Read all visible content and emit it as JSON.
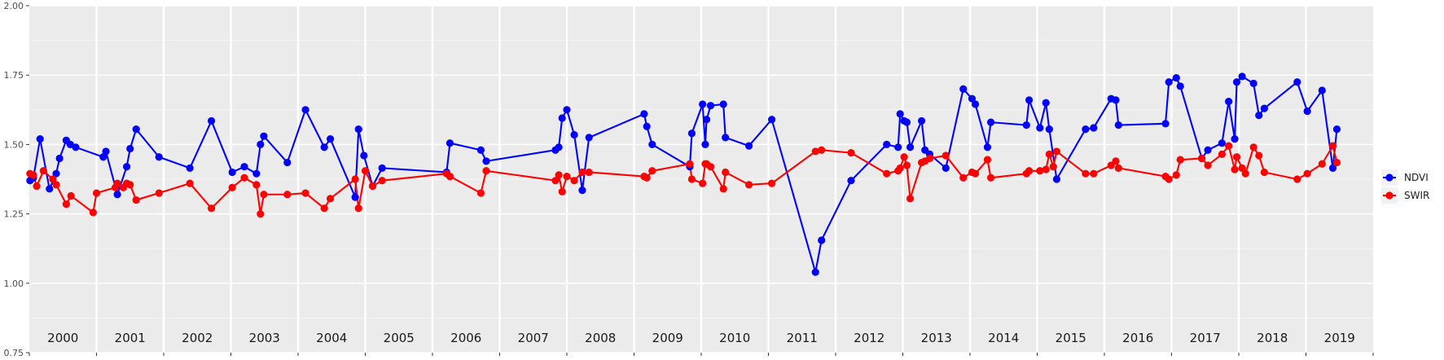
{
  "chart_data": {
    "type": "line",
    "title": "",
    "xlabel": "",
    "ylabel": "",
    "ylim": [
      0.75,
      2.0
    ],
    "y_ticks": [
      "0.75",
      "1.00",
      "1.25",
      "1.50",
      "1.75",
      "2.00"
    ],
    "x_range": [
      2000.0,
      2020.0
    ],
    "grid": true,
    "legend_position": "right",
    "year_panels": [
      "2000",
      "2001",
      "2002",
      "2003",
      "2004",
      "2005",
      "2006",
      "2007",
      "2008",
      "2009",
      "2010",
      "2011",
      "2012",
      "2013",
      "2014",
      "2015",
      "2016",
      "2017",
      "2018",
      "2019"
    ],
    "series": [
      {
        "name": "NDVI",
        "color": "#0000ff",
        "points": [
          [
            2000.01,
            1.37
          ],
          [
            2000.06,
            1.38
          ],
          [
            2000.16,
            1.52
          ],
          [
            2000.3,
            1.34
          ],
          [
            2000.4,
            1.395
          ],
          [
            2000.45,
            1.45
          ],
          [
            2000.55,
            1.515
          ],
          [
            2000.61,
            1.5
          ],
          [
            2000.69,
            1.49
          ],
          [
            2001.1,
            1.455
          ],
          [
            2001.14,
            1.475
          ],
          [
            2001.31,
            1.32
          ],
          [
            2001.45,
            1.42
          ],
          [
            2001.5,
            1.485
          ],
          [
            2001.59,
            1.555
          ],
          [
            2001.93,
            1.455
          ],
          [
            2002.39,
            1.415
          ],
          [
            2002.71,
            1.585
          ],
          [
            2003.02,
            1.4
          ],
          [
            2003.2,
            1.42
          ],
          [
            2003.38,
            1.395
          ],
          [
            2003.44,
            1.5
          ],
          [
            2003.49,
            1.53
          ],
          [
            2003.84,
            1.435
          ],
          [
            2004.11,
            1.625
          ],
          [
            2004.39,
            1.49
          ],
          [
            2004.48,
            1.52
          ],
          [
            2004.85,
            1.31
          ],
          [
            2004.9,
            1.555
          ],
          [
            2004.98,
            1.46
          ],
          [
            2005.11,
            1.35
          ],
          [
            2005.25,
            1.415
          ],
          [
            2006.21,
            1.4
          ],
          [
            2006.26,
            1.505
          ],
          [
            2006.72,
            1.48
          ],
          [
            2006.8,
            1.44
          ],
          [
            2007.83,
            1.48
          ],
          [
            2007.88,
            1.49
          ],
          [
            2007.93,
            1.595
          ],
          [
            2008.0,
            1.625
          ],
          [
            2008.11,
            1.535
          ],
          [
            2008.23,
            1.335
          ],
          [
            2008.33,
            1.525
          ],
          [
            2009.15,
            1.61
          ],
          [
            2009.19,
            1.565
          ],
          [
            2009.27,
            1.5
          ],
          [
            2009.83,
            1.42
          ],
          [
            2009.86,
            1.54
          ],
          [
            2010.02,
            1.645
          ],
          [
            2010.06,
            1.5
          ],
          [
            2010.08,
            1.59
          ],
          [
            2010.14,
            1.64
          ],
          [
            2010.33,
            1.645
          ],
          [
            2010.36,
            1.525
          ],
          [
            2010.71,
            1.495
          ],
          [
            2011.05,
            1.59
          ],
          [
            2011.7,
            1.04
          ],
          [
            2011.79,
            1.155
          ],
          [
            2012.23,
            1.37
          ],
          [
            2012.76,
            1.5
          ],
          [
            2012.93,
            1.49
          ],
          [
            2012.96,
            1.61
          ],
          [
            2013.02,
            1.585
          ],
          [
            2013.06,
            1.58
          ],
          [
            2013.11,
            1.49
          ],
          [
            2013.28,
            1.585
          ],
          [
            2013.33,
            1.48
          ],
          [
            2013.4,
            1.465
          ],
          [
            2013.64,
            1.415
          ],
          [
            2013.9,
            1.7
          ],
          [
            2014.03,
            1.665
          ],
          [
            2014.08,
            1.645
          ],
          [
            2014.26,
            1.49
          ],
          [
            2014.31,
            1.58
          ],
          [
            2014.84,
            1.57
          ],
          [
            2014.88,
            1.66
          ],
          [
            2015.04,
            1.56
          ],
          [
            2015.13,
            1.65
          ],
          [
            2015.18,
            1.555
          ],
          [
            2015.29,
            1.375
          ],
          [
            2015.72,
            1.555
          ],
          [
            2015.84,
            1.56
          ],
          [
            2016.1,
            1.665
          ],
          [
            2016.17,
            1.66
          ],
          [
            2016.21,
            1.57
          ],
          [
            2016.91,
            1.575
          ],
          [
            2016.96,
            1.725
          ],
          [
            2017.07,
            1.74
          ],
          [
            2017.13,
            1.71
          ],
          [
            2017.45,
            1.45
          ],
          [
            2017.54,
            1.48
          ],
          [
            2017.75,
            1.505
          ],
          [
            2017.85,
            1.655
          ],
          [
            2017.94,
            1.52
          ],
          [
            2017.97,
            1.725
          ],
          [
            2018.05,
            1.745
          ],
          [
            2018.22,
            1.72
          ],
          [
            2018.3,
            1.605
          ],
          [
            2018.38,
            1.63
          ],
          [
            2018.87,
            1.725
          ],
          [
            2019.02,
            1.62
          ],
          [
            2019.24,
            1.695
          ],
          [
            2019.4,
            1.415
          ],
          [
            2019.46,
            1.555
          ]
        ]
      },
      {
        "name": "SWIR",
        "color": "#ff0000",
        "points": [
          [
            2000.01,
            1.395
          ],
          [
            2000.06,
            1.39
          ],
          [
            2000.11,
            1.35
          ],
          [
            2000.21,
            1.405
          ],
          [
            2000.35,
            1.375
          ],
          [
            2000.4,
            1.355
          ],
          [
            2000.55,
            1.285
          ],
          [
            2000.62,
            1.315
          ],
          [
            2000.95,
            1.255
          ],
          [
            2001.0,
            1.325
          ],
          [
            2001.28,
            1.345
          ],
          [
            2001.31,
            1.36
          ],
          [
            2001.4,
            1.345
          ],
          [
            2001.45,
            1.36
          ],
          [
            2001.5,
            1.355
          ],
          [
            2001.59,
            1.3
          ],
          [
            2001.93,
            1.325
          ],
          [
            2002.39,
            1.36
          ],
          [
            2002.71,
            1.27
          ],
          [
            2003.02,
            1.345
          ],
          [
            2003.2,
            1.38
          ],
          [
            2003.38,
            1.355
          ],
          [
            2003.44,
            1.25
          ],
          [
            2003.49,
            1.32
          ],
          [
            2003.84,
            1.32
          ],
          [
            2004.11,
            1.325
          ],
          [
            2004.39,
            1.27
          ],
          [
            2004.48,
            1.305
          ],
          [
            2004.85,
            1.375
          ],
          [
            2004.9,
            1.27
          ],
          [
            2005.0,
            1.405
          ],
          [
            2005.11,
            1.35
          ],
          [
            2005.25,
            1.37
          ],
          [
            2006.21,
            1.395
          ],
          [
            2006.26,
            1.385
          ],
          [
            2006.72,
            1.325
          ],
          [
            2006.8,
            1.405
          ],
          [
            2007.83,
            1.37
          ],
          [
            2007.88,
            1.39
          ],
          [
            2007.93,
            1.33
          ],
          [
            2008.0,
            1.385
          ],
          [
            2008.11,
            1.37
          ],
          [
            2008.23,
            1.4
          ],
          [
            2008.33,
            1.4
          ],
          [
            2009.15,
            1.385
          ],
          [
            2009.19,
            1.38
          ],
          [
            2009.27,
            1.405
          ],
          [
            2009.83,
            1.43
          ],
          [
            2009.86,
            1.375
          ],
          [
            2010.02,
            1.36
          ],
          [
            2010.06,
            1.43
          ],
          [
            2010.08,
            1.43
          ],
          [
            2010.14,
            1.42
          ],
          [
            2010.33,
            1.34
          ],
          [
            2010.36,
            1.4
          ],
          [
            2010.71,
            1.355
          ],
          [
            2011.05,
            1.36
          ],
          [
            2011.7,
            1.475
          ],
          [
            2011.79,
            1.48
          ],
          [
            2012.23,
            1.47
          ],
          [
            2012.76,
            1.395
          ],
          [
            2012.93,
            1.405
          ],
          [
            2012.96,
            1.415
          ],
          [
            2013.02,
            1.455
          ],
          [
            2013.06,
            1.425
          ],
          [
            2013.11,
            1.305
          ],
          [
            2013.28,
            1.435
          ],
          [
            2013.33,
            1.44
          ],
          [
            2013.4,
            1.45
          ],
          [
            2013.64,
            1.46
          ],
          [
            2013.9,
            1.38
          ],
          [
            2014.03,
            1.4
          ],
          [
            2014.08,
            1.395
          ],
          [
            2014.26,
            1.445
          ],
          [
            2014.31,
            1.38
          ],
          [
            2014.84,
            1.395
          ],
          [
            2014.88,
            1.405
          ],
          [
            2015.04,
            1.405
          ],
          [
            2015.13,
            1.41
          ],
          [
            2015.18,
            1.465
          ],
          [
            2015.24,
            1.42
          ],
          [
            2015.29,
            1.475
          ],
          [
            2015.72,
            1.395
          ],
          [
            2015.84,
            1.395
          ],
          [
            2016.1,
            1.425
          ],
          [
            2016.17,
            1.44
          ],
          [
            2016.21,
            1.415
          ],
          [
            2016.91,
            1.385
          ],
          [
            2016.96,
            1.375
          ],
          [
            2017.07,
            1.39
          ],
          [
            2017.13,
            1.445
          ],
          [
            2017.45,
            1.45
          ],
          [
            2017.54,
            1.425
          ],
          [
            2017.75,
            1.465
          ],
          [
            2017.85,
            1.495
          ],
          [
            2017.94,
            1.41
          ],
          [
            2017.97,
            1.455
          ],
          [
            2018.05,
            1.415
          ],
          [
            2018.1,
            1.395
          ],
          [
            2018.22,
            1.49
          ],
          [
            2018.3,
            1.46
          ],
          [
            2018.38,
            1.4
          ],
          [
            2018.87,
            1.375
          ],
          [
            2019.02,
            1.395
          ],
          [
            2019.24,
            1.43
          ],
          [
            2019.4,
            1.495
          ],
          [
            2019.46,
            1.435
          ]
        ]
      }
    ]
  }
}
